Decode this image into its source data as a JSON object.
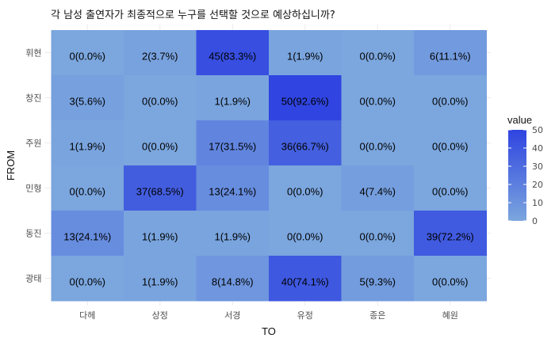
{
  "chart_data": {
    "type": "heatmap",
    "title": "각 남성 출연자가 최종적으로 누구를 선택할 것으로 예상하십니까?",
    "xlabel": "TO",
    "ylabel": "FROM",
    "x_categories": [
      "다헤",
      "상정",
      "서경",
      "유정",
      "종은",
      "혜원"
    ],
    "y_categories": [
      "휘현",
      "창진",
      "주원",
      "민형",
      "동진",
      "광태"
    ],
    "values": [
      [
        0,
        2,
        45,
        1,
        0,
        6
      ],
      [
        3,
        0,
        1,
        50,
        0,
        0
      ],
      [
        1,
        0,
        17,
        36,
        0,
        0
      ],
      [
        0,
        37,
        13,
        0,
        4,
        0
      ],
      [
        13,
        1,
        1,
        0,
        0,
        39
      ],
      [
        0,
        1,
        8,
        40,
        5,
        0
      ]
    ],
    "labels": [
      [
        "0(0.0%)",
        "2(3.7%)",
        "45(83.3%)",
        "1(1.9%)",
        "0(0.0%)",
        "6(11.1%)"
      ],
      [
        "3(5.6%)",
        "0(0.0%)",
        "1(1.9%)",
        "50(92.6%)",
        "0(0.0%)",
        "0(0.0%)"
      ],
      [
        "1(1.9%)",
        "0(0.0%)",
        "17(31.5%)",
        "36(66.7%)",
        "0(0.0%)",
        "0(0.0%)"
      ],
      [
        "0(0.0%)",
        "37(68.5%)",
        "13(24.1%)",
        "0(0.0%)",
        "4(7.4%)",
        "0(0.0%)"
      ],
      [
        "13(24.1%)",
        "1(1.9%)",
        "1(1.9%)",
        "0(0.0%)",
        "0(0.0%)",
        "39(72.2%)"
      ],
      [
        "0(0.0%)",
        "1(1.9%)",
        "8(14.8%)",
        "40(74.1%)",
        "5(9.3%)",
        "0(0.0%)"
      ]
    ],
    "legend": {
      "title": "value",
      "ticks": [
        0,
        10,
        20,
        30,
        40,
        50
      ],
      "range": [
        0,
        50
      ],
      "placement": "right"
    },
    "colors": {
      "low": "#7BA6DE",
      "high": "#2F44E0"
    },
    "grid": true
  }
}
